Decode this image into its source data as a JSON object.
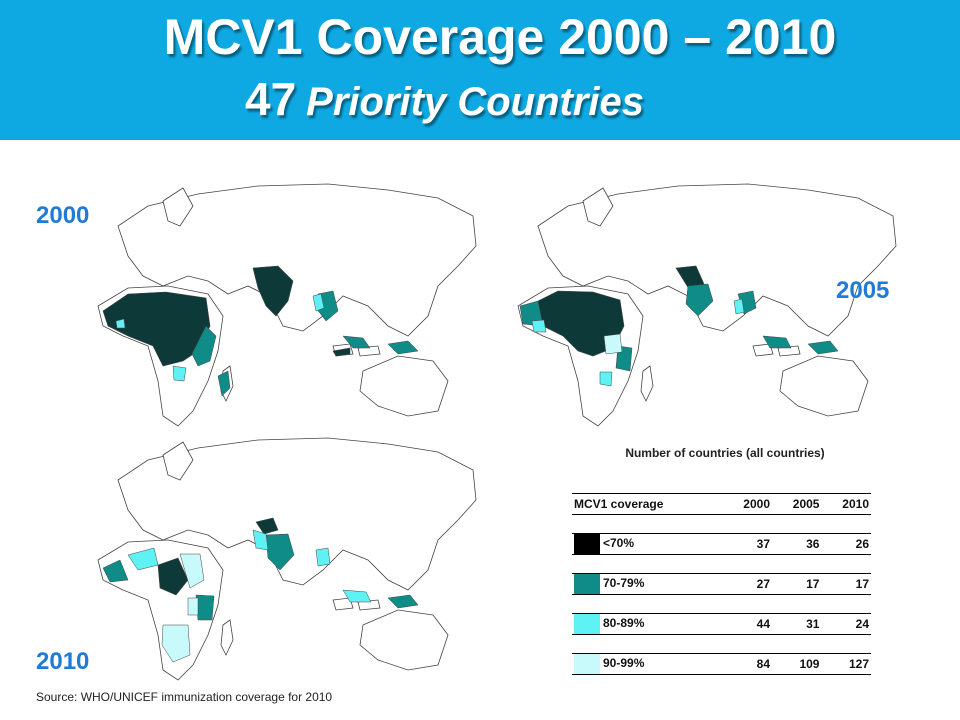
{
  "header": {
    "title_line1": "MCV1 Coverage 2000 – 2010",
    "title_line2_num": "47",
    "title_line2_rest": "Priority Countries",
    "background": "#0ea9e3"
  },
  "maps": [
    {
      "year": "2000"
    },
    {
      "year": "2005"
    },
    {
      "year": "2010"
    }
  ],
  "legend_colors": {
    "lt70": "#000000",
    "c70_79": "#0f8c88",
    "c80_89": "#5ff2f5",
    "c90_99": "#c8fafb",
    "dark_country": "#0d3a38"
  },
  "table": {
    "caption": "Number of countries  (all countries)",
    "headers": [
      "MCV1 coverage",
      "2000",
      "2005",
      "2010"
    ],
    "rows": [
      {
        "label": "<70%",
        "v2000": "37",
        "v2005": "36",
        "v2010": "26"
      },
      {
        "label": "70-79%",
        "v2000": "27",
        "v2005": "17",
        "v2010": "17"
      },
      {
        "label": "80-89%",
        "v2000": "44",
        "v2005": "31",
        "v2010": "24"
      },
      {
        "label": "90-99%",
        "v2000": "84",
        "v2005": "109",
        "v2010": "127"
      }
    ]
  },
  "source": "Source: WHO/UNICEF immunization coverage for 2010"
}
